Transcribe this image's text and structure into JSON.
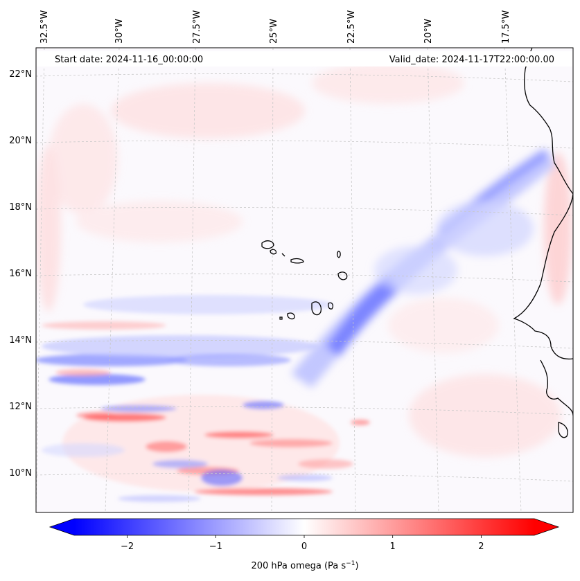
{
  "header": {
    "start_date": "Start date: 2024-11-16_00:00:00",
    "valid_date": "Valid_date: 2024-11-17T22:00:00.00"
  },
  "map": {
    "lon_labels": [
      "32.5°W",
      "30°W",
      "27.5°W",
      "25°W",
      "22.5°W",
      "20°W",
      "17.5°W"
    ],
    "lat_labels": [
      "22°N",
      "20°N",
      "18°N",
      "16°N",
      "14°N",
      "12°N",
      "10°N"
    ],
    "field": "200 hPa omega",
    "colors": {
      "negative": "#0000ff",
      "zero": "#ffffff",
      "positive": "#ff0000",
      "coastline": "#000000",
      "gridline": "#c8c8c8"
    }
  },
  "colorbar": {
    "ticks": [
      "−2",
      "−1",
      "0",
      "1",
      "2"
    ],
    "tick_values": [
      -2,
      -1,
      0,
      1,
      2
    ],
    "range": [
      -2.6,
      2.6
    ],
    "label_main": "200 hPa omega (Pa s",
    "label_sup": "−1",
    "label_close": ")"
  }
}
